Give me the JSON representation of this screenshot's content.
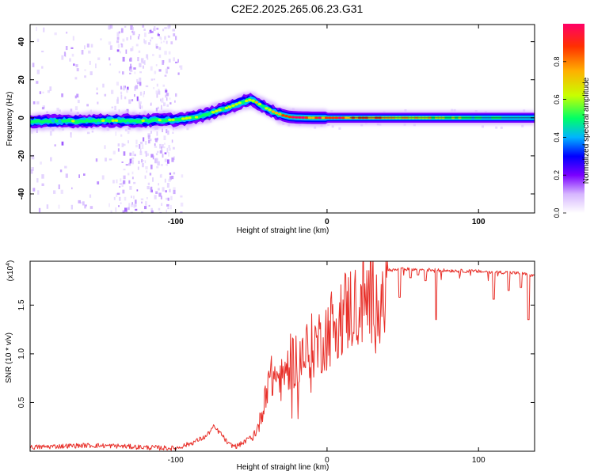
{
  "title": "C2E2.2025.265.06.23.G31",
  "colors": {
    "snr_line": "#e8302a",
    "frame": "#000000",
    "background": "#ffffff"
  },
  "chart_data": [
    {
      "type": "heatmap",
      "xlabel": "Height of straight line (km)",
      "ylabel": "Frequency (Hz)",
      "xlim": [
        -196,
        137
      ],
      "ylim": [
        -50,
        49
      ],
      "xticks": [
        -100,
        0,
        100
      ],
      "yticks": [
        -40,
        -20,
        0,
        20,
        40
      ],
      "grid": false,
      "colorbar": {
        "label": "Normalized spectral amplitude",
        "range": [
          0.0,
          1.0
        ],
        "ticks": [
          0.0,
          0.2,
          0.4,
          0.6,
          0.8
        ],
        "colormap": [
          "#ffffff",
          "#d6b6ff",
          "#7a00ff",
          "#0000ff",
          "#00b4ff",
          "#00ff66",
          "#c8ff00",
          "#ffb000",
          "#ff3000",
          "#ff0066"
        ]
      },
      "ridge_center_hz": {
        "x": [
          -196,
          -150,
          -120,
          -100,
          -85,
          -75,
          -65,
          -55,
          -50,
          -45,
          -40,
          -35,
          -30,
          -25,
          -20,
          -10,
          0,
          15,
          50,
          100,
          137
        ],
        "y": [
          -2,
          -1.5,
          -1.5,
          -1.0,
          0.5,
          3.0,
          5.5,
          8.5,
          9.5,
          7.5,
          5.0,
          3.0,
          1.5,
          0.5,
          0.2,
          0.0,
          0.0,
          0.0,
          0.0,
          0.0,
          0.0
        ]
      },
      "ridge_peak_amplitude": {
        "x": [
          -196,
          -120,
          -60,
          -40,
          -20,
          0,
          20,
          60,
          100,
          137
        ],
        "y": [
          0.55,
          0.6,
          0.65,
          0.7,
          0.95,
          0.95,
          0.85,
          0.75,
          0.5,
          0.45
        ]
      }
    },
    {
      "type": "line",
      "xlabel": "Height of straight line (km)",
      "ylabel": "SNR (10 * v/v)",
      "ylabel_multiplier": "(x10^4)",
      "xlim": [
        -196,
        137
      ],
      "ylim": [
        0,
        19500
      ],
      "xticks": [
        -100,
        0,
        100
      ],
      "yticks": [
        5000,
        10000,
        15000
      ],
      "ytick_labels": [
        "0.5",
        "1.0",
        "1.5"
      ],
      "grid": false,
      "series": [
        {
          "values_envelope": {
            "x": [
              -196,
              -180,
              -160,
              -140,
              -120,
              -100,
              -90,
              -80,
              -75,
              -70,
              -65,
              -60,
              -55,
              -50,
              -45,
              -42,
              -40,
              -35,
              -30,
              -25,
              -20,
              -15,
              -10,
              -5,
              0,
              5,
              10,
              15,
              20,
              25,
              30,
              35,
              40,
              45,
              50,
              60,
              70,
              80,
              90,
              100,
              110,
              120,
              130,
              137
            ],
            "y": [
              400,
              500,
              600,
              550,
              400,
              300,
              800,
              1500,
              2500,
              1800,
              700,
              500,
              900,
              1500,
              3000,
              5500,
              8000,
              9000,
              8500,
              10500,
              11000,
              11500,
              12500,
              13000,
              14000,
              15500,
              16500,
              17000,
              17500,
              18000,
              18300,
              18500,
              18600,
              18600,
              18700,
              18650,
              18600,
              18550,
              18500,
              18450,
              18400,
              18350,
              18200,
              18000
            ]
          },
          "notable_dips": {
            "x": [
              48,
              55,
              60,
              65,
              72,
              110,
              120,
              128,
              133
            ],
            "y": [
              15800,
              17800,
              18100,
              17500,
              13500,
              15600,
              16500,
              16800,
              13500
            ]
          }
        }
      ]
    }
  ]
}
